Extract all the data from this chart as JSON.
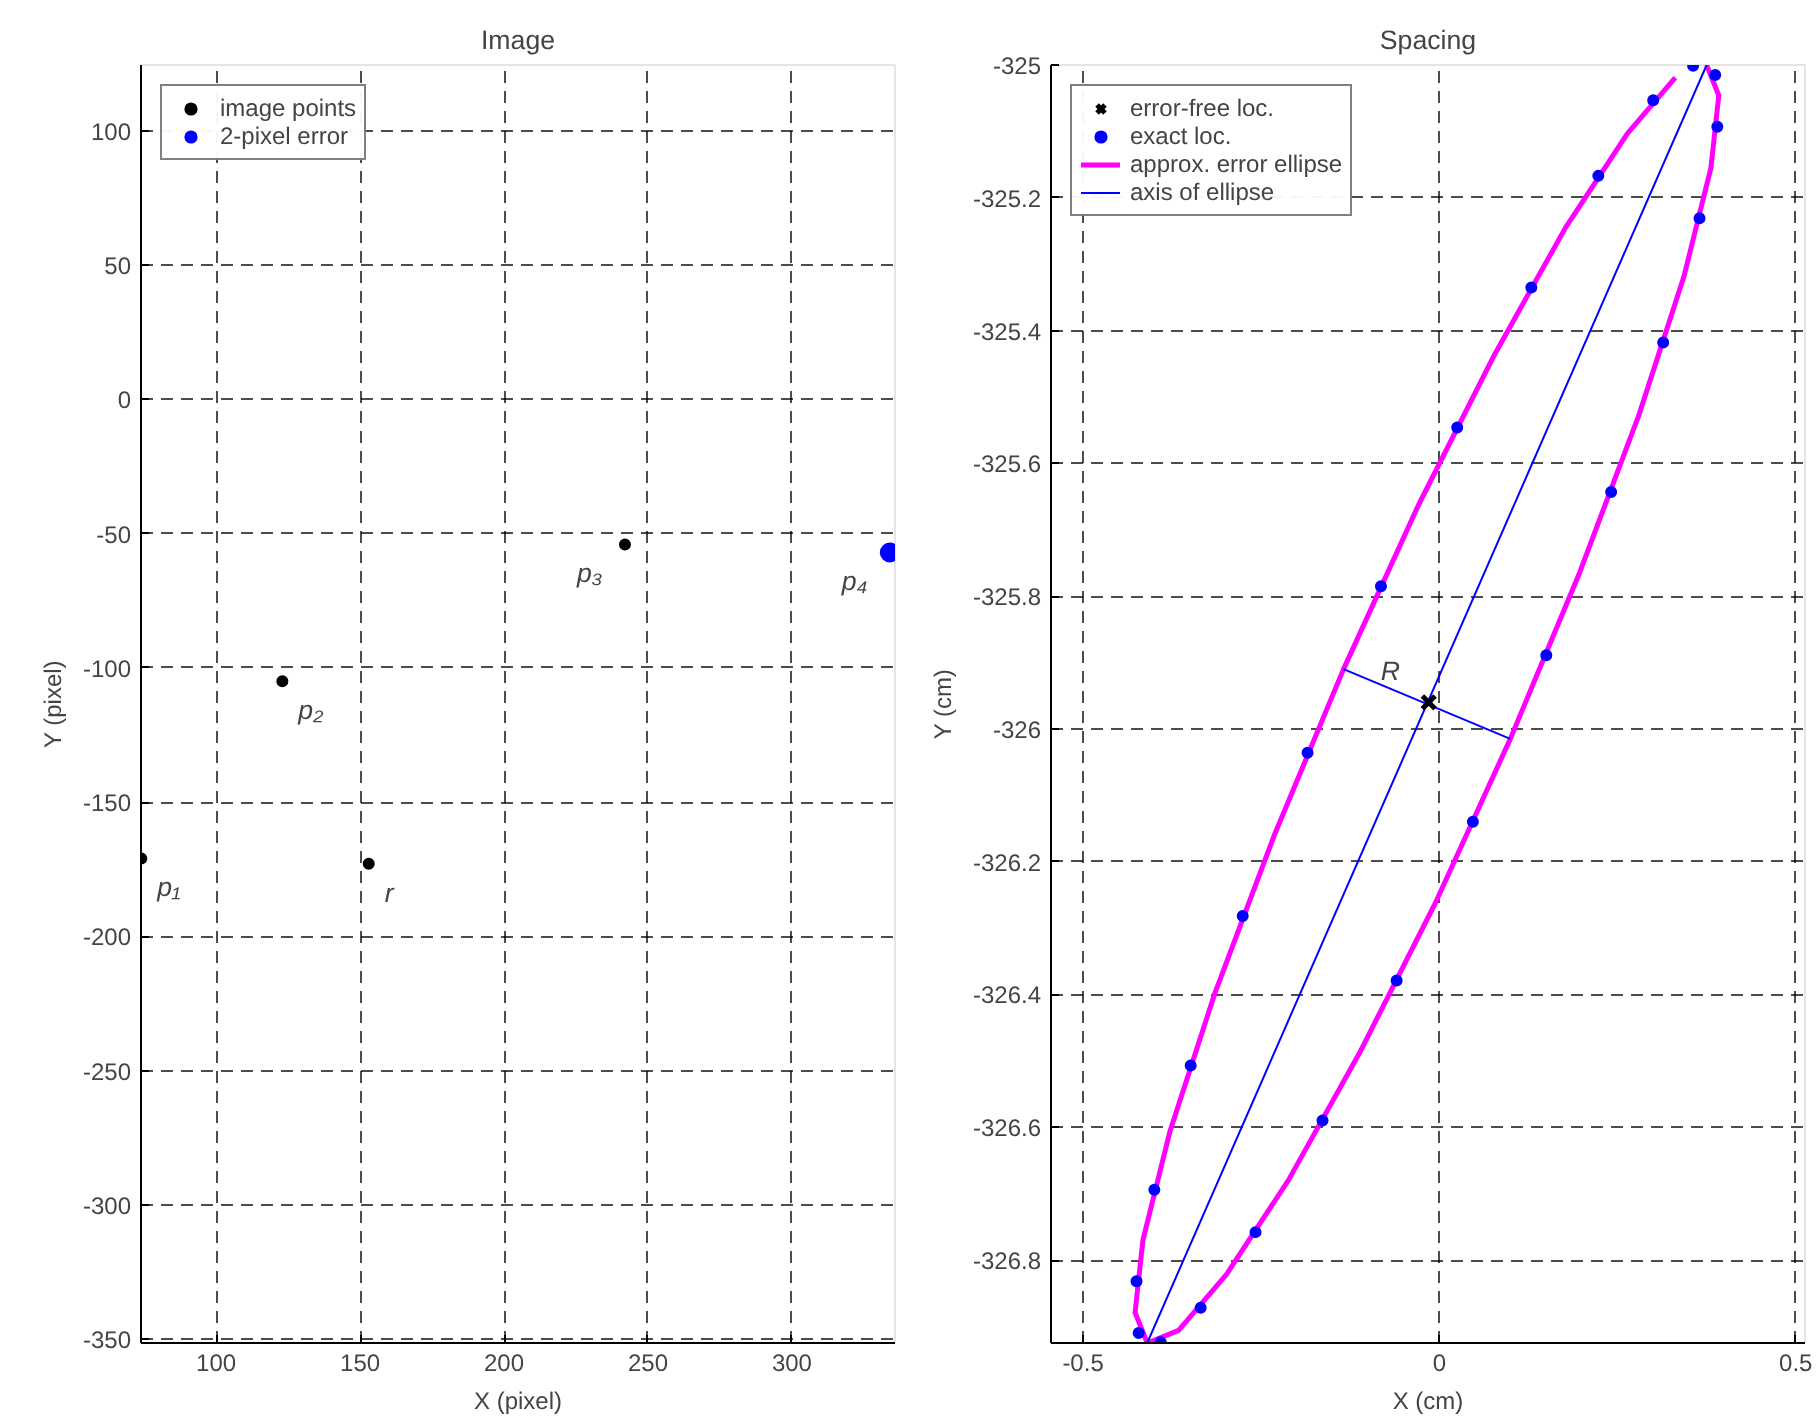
{
  "chart_data": [
    {
      "type": "scatter",
      "title": "Image",
      "xlabel": "X (pixel)",
      "ylabel": "Y (pixel)",
      "xlim": [
        73.9,
        335.8
      ],
      "ylim": [
        -351.5,
        124.6
      ],
      "xticks": [
        100,
        150,
        200,
        250,
        300
      ],
      "yticks": [
        -350,
        -300,
        -250,
        -200,
        -150,
        -100,
        -50,
        0,
        50,
        100
      ],
      "grid": true,
      "legend": "top left",
      "series": [
        {
          "name": "image points",
          "color": "#000000",
          "marker": "circle",
          "x": [
            74,
            123,
            242,
            153
          ],
          "values": [
            -171,
            -105,
            -54,
            -173
          ]
        },
        {
          "name": "2-pixel error",
          "color": "#0000ff",
          "marker": "circle",
          "x": [
            334
          ],
          "values": [
            -57
          ]
        }
      ],
      "annotations": [
        {
          "text": "p₁",
          "x": 74,
          "y": -171
        },
        {
          "text": "p₂",
          "x": 123,
          "y": -105
        },
        {
          "text": "p₃",
          "x": 242,
          "y": -54
        },
        {
          "text": "p₄",
          "x": 334,
          "y": -57
        },
        {
          "text": "r",
          "x": 153,
          "y": -173
        }
      ]
    },
    {
      "type": "line",
      "title": "Spacing",
      "xlabel": "X (cm)",
      "ylabel": "Y (cm)",
      "xlim": [
        -0.545,
        0.513
      ],
      "ylim": [
        -326.925,
        -325
      ],
      "xticks": [
        -0.5,
        0,
        0.5
      ],
      "yticks": [
        -326.8,
        -326.6,
        -326.4,
        -326.2,
        -326,
        -325.8,
        -325.6,
        -325.4,
        -325.2,
        -325
      ],
      "grid": true,
      "legend": "top left",
      "series": [
        {
          "name": "error-free loc.",
          "type": "scatter",
          "marker": "cross",
          "color": "#000000",
          "x": [
            -0.015
          ],
          "values": [
            -325.96
          ]
        },
        {
          "name": "exact loc.",
          "type": "scatter",
          "marker": "circle",
          "color": "#0000ff",
          "x": [
            0.387,
            0.39,
            0.365,
            0.314,
            0.241,
            0.15,
            0.047,
            -0.06,
            -0.164,
            -0.258,
            -0.335,
            -0.391,
            -0.422,
            -0.425,
            -0.4,
            -0.349,
            -0.276,
            -0.185,
            -0.082,
            0.025,
            0.129,
            0.223,
            0.3,
            0.356
          ],
          "values": [
            -325.015,
            -325.093,
            -325.231,
            -325.418,
            -325.643,
            -325.889,
            -326.14,
            -326.379,
            -326.59,
            -326.758,
            -326.872,
            -326.924,
            -326.91,
            -326.832,
            -326.694,
            -326.507,
            -326.282,
            -326.036,
            -325.785,
            -325.546,
            -325.335,
            -325.167,
            -325.053,
            -325.001
          ]
        },
        {
          "name": "approx. error ellipse",
          "type": "line",
          "color": "#ff00ff",
          "x": [
            0.375,
            0.392,
            0.381,
            0.343,
            0.28,
            0.197,
            0.0995,
            -0.006,
            -0.1125,
            -0.212,
            -0.299,
            -0.366,
            -0.41,
            -0.427,
            -0.416,
            -0.378,
            -0.315,
            -0.232,
            -0.1345,
            -0.029,
            0.0775,
            0.177,
            0.264,
            0.331
          ],
          "values": [
            -325.0,
            -325.046,
            -325.155,
            -325.319,
            -325.527,
            -325.764,
            -326.015,
            -326.263,
            -326.489,
            -326.68,
            -326.822,
            -326.906,
            -326.925,
            -326.879,
            -326.77,
            -326.606,
            -326.398,
            -326.161,
            -325.91,
            -325.662,
            -325.436,
            -325.245,
            -325.103,
            -325.019
          ]
        },
        {
          "name": "axis of ellipse",
          "type": "line",
          "color": "#0000ff",
          "x": [
            -0.41,
            0.375,
            null,
            -0.1345,
            0.0995
          ],
          "values": [
            -326.925,
            -325.0,
            null,
            -325.91,
            -326.015
          ]
        }
      ],
      "annotations": [
        {
          "text": "R",
          "x": -0.015,
          "y": -325.96
        }
      ]
    }
  ]
}
